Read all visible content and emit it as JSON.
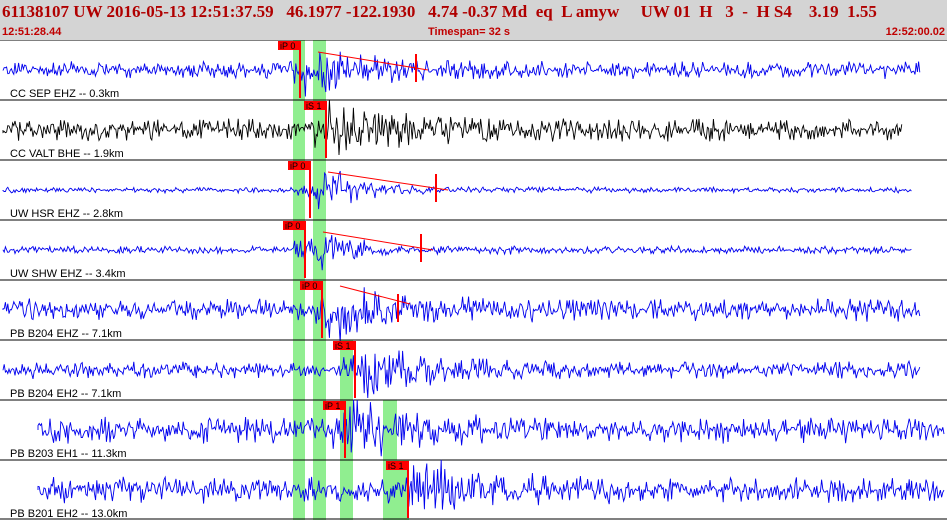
{
  "header": {
    "event_line": "61138107 UW 2016-05-13 12:51:37.59   46.1977 -122.1930   4.74 -0.37 Md  eq  L amyw     UW 01  H   3  -  H S4    3.19  1.55",
    "start_time": "12:51:28.44",
    "timespan": "Timespan=  32 s",
    "end_time": "12:52:00.02"
  },
  "colors": {
    "trace_blue": "#0000ee",
    "trace_black": "#000000",
    "pick_red": "#ff0000",
    "band_green": "#90ee90",
    "header_bg": "#d4d4d4",
    "header_text": "#b00000"
  },
  "traces": [
    {
      "label": "CC SEP EHZ -- 0.3km",
      "color": "blue",
      "pick": "iP 0",
      "amp": 9,
      "quiet_to": 0.3,
      "burst": 0.37
    },
    {
      "label": "CC VALT BHE -- 1.9km",
      "color": "black",
      "pick": "iS 1",
      "amp": 12,
      "quiet_to": 0.32,
      "burst": 0.35
    },
    {
      "label": "UW HSR EHZ -- 2.8km",
      "color": "blue",
      "pick": "iP 0",
      "amp": 3,
      "quiet_to": 0.31,
      "burst": 0.35
    },
    {
      "label": "UW SHW EHZ -- 3.4km",
      "color": "blue",
      "pick": "iP 0",
      "amp": 4,
      "quiet_to": 0.32,
      "burst": 0.33
    },
    {
      "label": "PB B204 EHZ -- 7.1km",
      "color": "blue",
      "pick": "iP 0",
      "amp": 12,
      "quiet_to": 0.32,
      "burst": 0.36
    },
    {
      "label": "PB B204 EH2 -- 7.1km",
      "color": "blue",
      "pick": "iS 1",
      "amp": 9,
      "quiet_to": 0.35,
      "burst": 0.38
    },
    {
      "label": "PB B203 EH1 -- 11.3km",
      "color": "blue",
      "pick": "iP 1",
      "amp": 14,
      "quiet_to": 0.35,
      "burst": 0.37
    },
    {
      "label": "PB B201 EH2 -- 13.0km",
      "color": "blue",
      "pick": "iS 1",
      "amp": 14,
      "quiet_to": 0.42,
      "burst": 0.43
    }
  ]
}
